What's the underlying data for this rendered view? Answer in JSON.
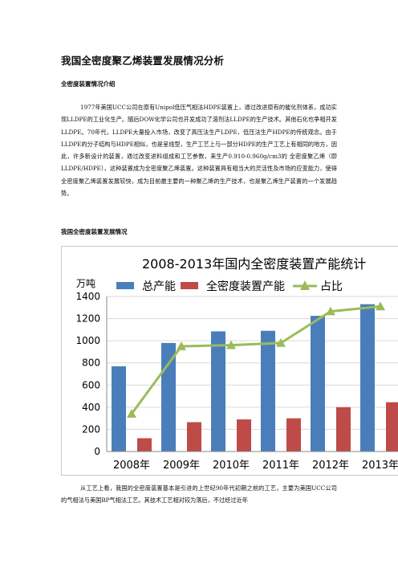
{
  "document": {
    "title": "我国全密度聚乙烯装置发展情况分析",
    "section1_heading": "全密度装置情况介绍",
    "section1_body": "1977年美国UCC公司在原有Unipol低压气相法HDPE装置上，通过改进原有的催化剂体系，成功实现LLDPE的工业化生产。随后DOW化学公司也开发成功了溶剂法LLDPE的生产技术。其他石化也争相开发LLDPE。70年代，LLDPE大量投入市场，改变了高压法生产LDPE，低压法生产HDPE的传统观念。由于LLDPE的分子结构与HDPE相似，也是呈线型，生产工艺上与一部分HDPE的生产工艺上有相同的地方，因此，许多新设计的装置，通过改变进料组成和工艺参数，来生产0.910-0.960g/cm3的 全密度聚乙烯（即LLDPE/HDPE），这种装置成为全密度聚乙烯装置。这种装置具有相当大的灵活性及市场的应变能力，使得全密度聚乙烯装置发展较快，成为目前最主要的一种聚乙烯的生产技术，也是聚乙烯生产装置的一个发展趋势。",
    "section2_heading": "我国全密度装置发展情况",
    "section2_body": "从工艺上看，我国的全密度装置基本是引进的上世纪90年代初期之前的工艺，主要为美国UCC公司的气相法与美国BP气相法工艺。其技术工艺相对较为落后，不过经过近年"
  },
  "chart_data": {
    "type": "bar",
    "title": "2008-2013年国内全密度装置产能统计",
    "ylabel": "万吨",
    "ylim": [
      0,
      1400
    ],
    "yticks": [
      0,
      200,
      400,
      600,
      800,
      1000,
      1200,
      1400
    ],
    "categories": [
      "2008年",
      "2009年",
      "2010年",
      "2011年",
      "2012年",
      "2013年"
    ],
    "series": [
      {
        "name": "总产能",
        "kind": "bar",
        "color": "#4a7ebb",
        "values": [
          770,
          980,
          1085,
          1090,
          1225,
          1330
        ]
      },
      {
        "name": "全密度装置产能",
        "kind": "bar",
        "color": "#be4b48",
        "values": [
          120,
          265,
          290,
          300,
          400,
          445
        ]
      },
      {
        "name": "占比",
        "kind": "line",
        "color": "#9bbb59",
        "values": [
          340,
          950,
          960,
          980,
          1265,
          1310
        ]
      }
    ],
    "legend_position": "top",
    "grid": true
  }
}
